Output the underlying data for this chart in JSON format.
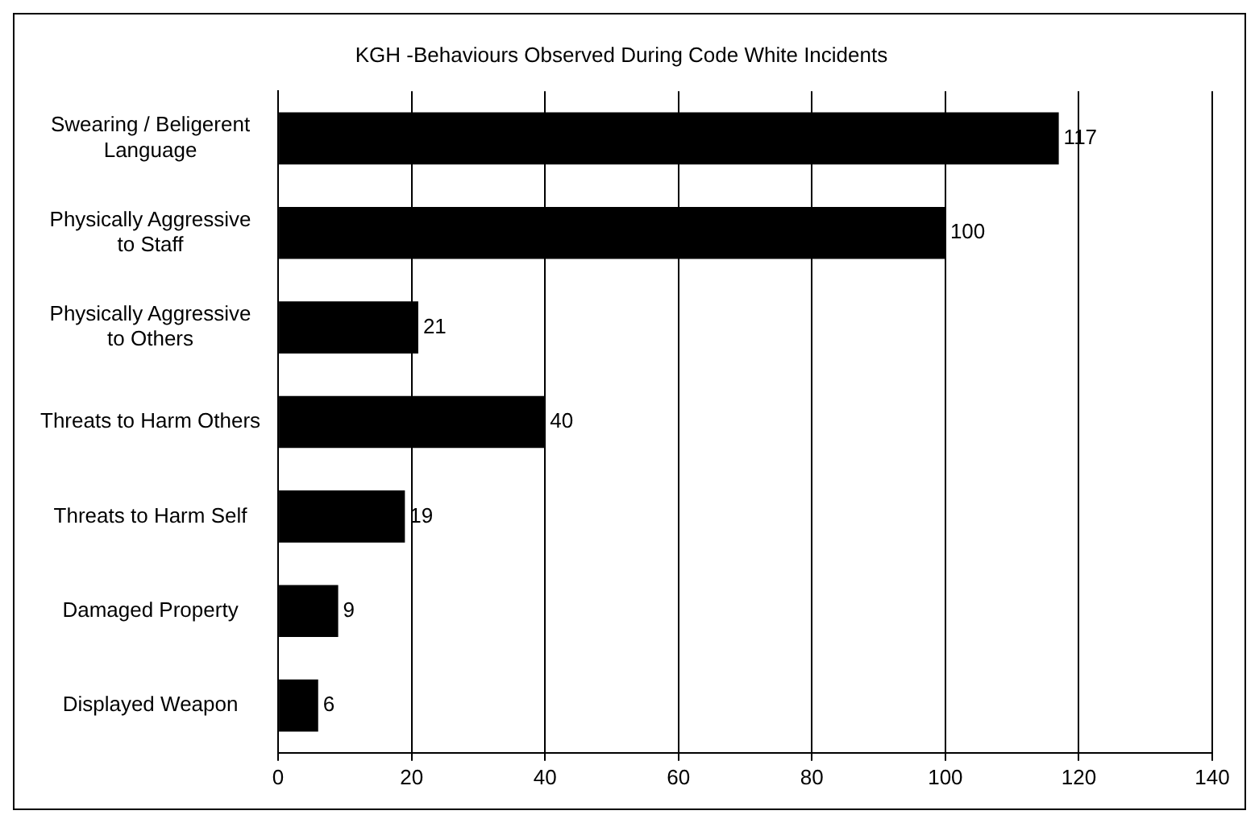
{
  "chart_data": {
    "type": "bar",
    "orientation": "horizontal",
    "title": "KGH -Behaviours Observed During Code White Incidents",
    "categories": [
      "Swearing / Beligerent Language",
      "Physically Aggressive to Staff",
      "Physically Aggressive to Others",
      "Threats to Harm Others",
      "Threats to Harm Self",
      "Damaged Property",
      "Displayed Weapon"
    ],
    "values": [
      117,
      100,
      21,
      40,
      19,
      9,
      6
    ],
    "color": "#000000",
    "xlim": [
      0,
      140
    ],
    "xticks": [
      0,
      20,
      40,
      60,
      80,
      100,
      120,
      140
    ],
    "grid": "x",
    "data_labels": true,
    "legend": false
  }
}
